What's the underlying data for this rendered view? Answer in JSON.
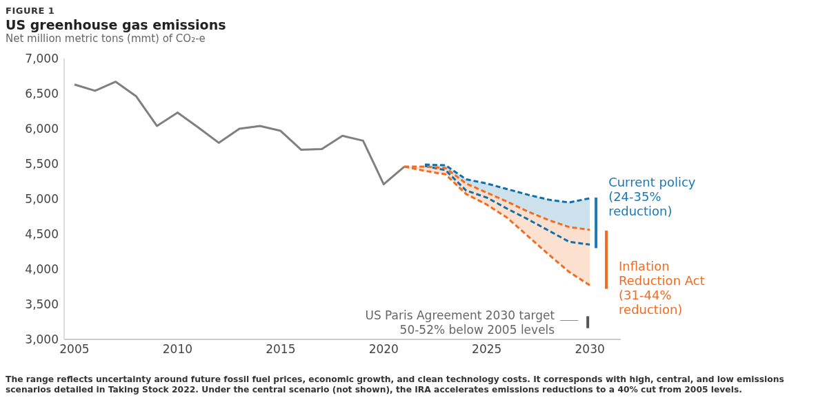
{
  "chart_data": {
    "type": "line",
    "title": "US greenhouse gas emissions",
    "subtitle": "Net million metric tons (mmt) of CO₂-e",
    "xlim": [
      2004.5,
      2031.5
    ],
    "xticks": [
      2005,
      2010,
      2015,
      2020,
      2025,
      2030
    ],
    "ylim": [
      3000,
      7000
    ],
    "yticks": [
      {
        "value": 3000,
        "label": "3,000"
      },
      {
        "value": 3500,
        "label": "3,500"
      },
      {
        "value": 4000,
        "label": "4,000"
      },
      {
        "value": 4500,
        "label": "4,500"
      },
      {
        "value": 5000,
        "label": "5,000"
      },
      {
        "value": 5500,
        "label": "5,500"
      },
      {
        "value": 6000,
        "label": "6,000"
      },
      {
        "value": 6500,
        "label": "6,500"
      },
      {
        "value": 7000,
        "label": "7,000"
      }
    ],
    "marker": "none",
    "series": [
      {
        "color": "#7f7f7f",
        "line_style": "solid",
        "x": [
          2005,
          2006,
          2007,
          2008,
          2009,
          2010,
          2011,
          2012,
          2013,
          2014,
          2015,
          2016,
          2017,
          2018,
          2019,
          2020,
          2021
        ],
        "values": [
          6630,
          6540,
          6670,
          6460,
          6040,
          6230,
          6020,
          5800,
          6000,
          6040,
          5970,
          5700,
          5710,
          5900,
          5830,
          5210,
          5460
        ]
      },
      {
        "color": "#0f6fa8",
        "line_style": "dashed",
        "x": [
          2022,
          2023,
          2024,
          2025,
          2026,
          2027,
          2028,
          2029,
          2030
        ],
        "values": [
          5490,
          5480,
          5280,
          5220,
          5140,
          5060,
          4990,
          4950,
          5010
        ],
        "lower": [
          5470,
          5410,
          5120,
          5020,
          4860,
          4710,
          4550,
          4390,
          4350
        ],
        "upper": [
          5490,
          5480,
          5280,
          5220,
          5140,
          5060,
          4990,
          4950,
          5010
        ]
      },
      {
        "color": "#0f6fa8",
        "line_style": "dashed",
        "x": [
          2022,
          2023,
          2024,
          2025,
          2026,
          2027,
          2028,
          2029,
          2030
        ],
        "values": [
          5470,
          5410,
          5120,
          5020,
          4860,
          4710,
          4550,
          4390,
          4350
        ]
      },
      {
        "color": "#f26b21",
        "line_style": "dashed",
        "x": [
          2021,
          2022,
          2023,
          2024,
          2025,
          2026,
          2027,
          2028,
          2029,
          2030
        ],
        "values": [
          5460,
          5460,
          5440,
          5220,
          5090,
          4960,
          4820,
          4700,
          4600,
          4560
        ],
        "lower": [
          5460,
          5400,
          5350,
          5070,
          4920,
          4730,
          4470,
          4210,
          3960,
          3770
        ],
        "upper": [
          5460,
          5460,
          5440,
          5220,
          5090,
          4960,
          4820,
          4700,
          4600,
          4560
        ]
      },
      {
        "color": "#f26b21",
        "line_style": "dashed",
        "x": [
          2021,
          2022,
          2023,
          2024,
          2025,
          2026,
          2027,
          2028,
          2029,
          2030
        ],
        "values": [
          5460,
          5400,
          5350,
          5070,
          4920,
          4730,
          4470,
          4210,
          3960,
          3770
        ]
      },
      {
        "name": "Current policy (24-35% reduction)",
        "color": "#1a78b8",
        "line_style": "solid",
        "x": [
          2030.3,
          2030.3
        ],
        "values": [
          5020,
          4300
        ]
      },
      {
        "name": "Inflation Reduction Act (31-44% reduction)",
        "color": "#f26b21",
        "line_style": "solid",
        "x": [
          2030.8,
          2030.8
        ],
        "values": [
          3720,
          4550
        ]
      },
      {
        "color": "#555555",
        "line_style": "solid",
        "x": [
          2029.9,
          2029.9
        ],
        "values": [
          3330,
          3160
        ]
      }
    ],
    "annotations": [
      "FIGURE 1",
      {
        "text": "US Paris Agreement 2030 target 50-52% below 2005 levels",
        "x": 2029.9,
        "y": 3250
      },
      "The range reflects uncertainty around future fossil fuel prices, economic growth, and clean technology costs. It corresponds with high, central, and low emissions scenarios detailed in Taking Stock 2022. Under the central scenario (not shown), the IRA accelerates emissions reductions to a 40% cut from 2005 levels."
    ]
  }
}
